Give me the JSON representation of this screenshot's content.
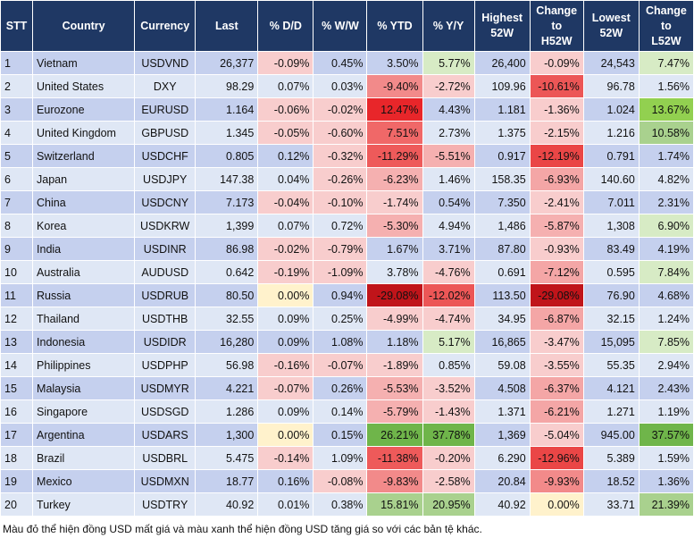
{
  "table": {
    "header": [
      "STT",
      "Country",
      "Currency",
      "Last",
      "% D/D",
      "% W/W",
      "% YTD",
      "% Y/Y",
      "Highest\n52W",
      "Change\nto\nH52W",
      "Lowest\n52W",
      "Change\nto\nL52W"
    ],
    "rows": [
      [
        "1",
        "Vietnam",
        "USDVND",
        "26,377",
        "-0.09%",
        "0.45%",
        "3.50%",
        "5.77%",
        "26,400",
        "-0.09%",
        "24,543",
        "7.47%"
      ],
      [
        "2",
        "United States",
        "DXY",
        "98.29",
        "0.07%",
        "0.03%",
        "-9.40%",
        "-2.72%",
        "109.96",
        "-10.61%",
        "96.78",
        "1.56%"
      ],
      [
        "3",
        "Eurozone",
        "EURUSD",
        "1.164",
        "-0.06%",
        "-0.02%",
        "12.47%",
        "4.43%",
        "1.181",
        "-1.36%",
        "1.024",
        "13.67%"
      ],
      [
        "4",
        "United Kingdom",
        "GBPUSD",
        "1.345",
        "-0.05%",
        "-0.60%",
        "7.51%",
        "2.73%",
        "1.375",
        "-2.15%",
        "1.216",
        "10.58%"
      ],
      [
        "5",
        "Switzerland",
        "USDCHF",
        "0.805",
        "0.12%",
        "-0.32%",
        "-11.29%",
        "-5.51%",
        "0.917",
        "-12.19%",
        "0.791",
        "1.74%"
      ],
      [
        "6",
        "Japan",
        "USDJPY",
        "147.38",
        "0.04%",
        "-0.26%",
        "-6.23%",
        "1.46%",
        "158.35",
        "-6.93%",
        "140.60",
        "4.82%"
      ],
      [
        "7",
        "China",
        "USDCNY",
        "7.173",
        "-0.04%",
        "-0.10%",
        "-1.74%",
        "0.54%",
        "7.350",
        "-2.41%",
        "7.011",
        "2.31%"
      ],
      [
        "8",
        "Korea",
        "USDKRW",
        "1,399",
        "0.07%",
        "0.72%",
        "-5.30%",
        "4.94%",
        "1,486",
        "-5.87%",
        "1,308",
        "6.90%"
      ],
      [
        "9",
        "India",
        "USDINR",
        "86.98",
        "-0.02%",
        "-0.79%",
        "1.67%",
        "3.71%",
        "87.80",
        "-0.93%",
        "83.49",
        "4.19%"
      ],
      [
        "10",
        "Australia",
        "AUDUSD",
        "0.642",
        "-0.19%",
        "-1.09%",
        "3.78%",
        "-4.76%",
        "0.691",
        "-7.12%",
        "0.595",
        "7.84%"
      ],
      [
        "11",
        "Russia",
        "USDRUB",
        "80.50",
        "0.00%",
        "0.94%",
        "-29.08%",
        "-12.02%",
        "113.50",
        "-29.08%",
        "76.90",
        "4.68%"
      ],
      [
        "12",
        "Thailand",
        "USDTHB",
        "32.55",
        "0.09%",
        "0.25%",
        "-4.99%",
        "-4.74%",
        "34.95",
        "-6.87%",
        "32.15",
        "1.24%"
      ],
      [
        "13",
        "Indonesia",
        "USDIDR",
        "16,280",
        "0.09%",
        "1.08%",
        "1.18%",
        "5.17%",
        "16,865",
        "-3.47%",
        "15,095",
        "7.85%"
      ],
      [
        "14",
        "Philippines",
        "USDPHP",
        "56.98",
        "-0.16%",
        "-0.07%",
        "-1.89%",
        "0.85%",
        "59.08",
        "-3.55%",
        "55.35",
        "2.94%"
      ],
      [
        "15",
        "Malaysia",
        "USDMYR",
        "4.221",
        "-0.07%",
        "0.26%",
        "-5.53%",
        "-3.52%",
        "4.508",
        "-6.37%",
        "4.121",
        "2.43%"
      ],
      [
        "16",
        "Singapore",
        "USDSGD",
        "1.286",
        "0.09%",
        "0.14%",
        "-5.79%",
        "-1.43%",
        "1.371",
        "-6.21%",
        "1.271",
        "1.19%"
      ],
      [
        "17",
        "Argentina",
        "USDARS",
        "1,300",
        "0.00%",
        "0.15%",
        "26.21%",
        "37.78%",
        "1,369",
        "-5.04%",
        "945.00",
        "37.57%"
      ],
      [
        "18",
        "Brazil",
        "USDBRL",
        "5.475",
        "-0.14%",
        "1.09%",
        "-11.38%",
        "-0.20%",
        "6.290",
        "-12.96%",
        "5.389",
        "1.59%"
      ],
      [
        "19",
        "Mexico",
        "USDMXN",
        "18.77",
        "0.16%",
        "-0.08%",
        "-9.83%",
        "-2.58%",
        "20.84",
        "-9.93%",
        "18.52",
        "1.36%"
      ],
      [
        "20",
        "Turkey",
        "USDTRY",
        "40.92",
        "0.01%",
        "0.38%",
        "15.81%",
        "20.95%",
        "40.92",
        "0.00%",
        "33.71",
        "21.39%"
      ]
    ],
    "cell_fills": [
      [
        null,
        null,
        null,
        null,
        "#f8cdcd",
        null,
        null,
        "#d7ebc5",
        null,
        "#f8cdcd",
        null,
        "#d7ebc5"
      ],
      [
        null,
        null,
        null,
        null,
        null,
        null,
        "#f28a8a",
        "#f8cdcd",
        null,
        "#ec5656",
        null,
        null
      ],
      [
        null,
        null,
        null,
        null,
        "#f8cdcd",
        "#f8cdcd",
        "#e8262a",
        null,
        null,
        "#f8cdcd",
        null,
        "#92d050"
      ],
      [
        null,
        null,
        null,
        null,
        "#f8cdcd",
        "#f8cdcd",
        "#f06868",
        null,
        null,
        "#f8cdcd",
        null,
        "#a9d18e"
      ],
      [
        null,
        null,
        null,
        null,
        null,
        "#f8cdcd",
        "#ee5a5a",
        "#f5b0b0",
        null,
        "#ea4646",
        null,
        null
      ],
      [
        null,
        null,
        null,
        null,
        null,
        "#f8cdcd",
        "#f5b0b0",
        null,
        null,
        "#f4a6a6",
        null,
        null
      ],
      [
        null,
        null,
        null,
        null,
        "#f8cdcd",
        "#f8cdcd",
        "#f8cdcd",
        null,
        null,
        "#f8cdcd",
        null,
        null
      ],
      [
        null,
        null,
        null,
        null,
        null,
        null,
        "#f5b0b0",
        null,
        null,
        "#f5b0b0",
        null,
        "#d7ebc5"
      ],
      [
        null,
        null,
        null,
        null,
        "#f8cdcd",
        "#f8cdcd",
        null,
        null,
        null,
        "#f8cdcd",
        null,
        null
      ],
      [
        null,
        null,
        null,
        null,
        "#f8cdcd",
        "#f8cdcd",
        null,
        "#f8cdcd",
        null,
        "#f4a6a6",
        null,
        "#d7ebc5"
      ],
      [
        null,
        null,
        null,
        null,
        "#fff2cc",
        null,
        "#c0141a",
        "#ec5656",
        null,
        "#c0141a",
        null,
        null
      ],
      [
        null,
        null,
        null,
        null,
        null,
        null,
        "#f8cdcd",
        "#f8cdcd",
        null,
        "#f4a6a6",
        null,
        null
      ],
      [
        null,
        null,
        null,
        null,
        null,
        null,
        null,
        "#d7ebc5",
        null,
        "#f8cdcd",
        null,
        "#d7ebc5"
      ],
      [
        null,
        null,
        null,
        null,
        "#f8cdcd",
        "#f8cdcd",
        "#f8cdcd",
        null,
        null,
        "#f8cdcd",
        null,
        null
      ],
      [
        null,
        null,
        null,
        null,
        "#f8cdcd",
        null,
        "#f5b0b0",
        "#f8cdcd",
        null,
        "#f4a6a6",
        null,
        null
      ],
      [
        null,
        null,
        null,
        null,
        null,
        null,
        "#f5b0b0",
        "#f8cdcd",
        null,
        "#f4a6a6",
        null,
        null
      ],
      [
        null,
        null,
        null,
        null,
        "#fff2cc",
        null,
        "#6fb54a",
        "#6fb54a",
        null,
        "#f8cdcd",
        null,
        "#6fb54a"
      ],
      [
        null,
        null,
        null,
        null,
        "#f8cdcd",
        null,
        "#ee5a5a",
        "#f8cdcd",
        null,
        "#ea4646",
        null,
        null
      ],
      [
        null,
        null,
        null,
        null,
        null,
        "#f8cdcd",
        "#f28a8a",
        "#f8cdcd",
        null,
        "#f28a8a",
        null,
        null
      ],
      [
        null,
        null,
        null,
        null,
        null,
        null,
        "#a9d18e",
        "#a9d18e",
        null,
        "#fff2cc",
        null,
        "#a9d18e"
      ]
    ],
    "footnote": "Màu đỏ thể hiện đồng USD mất giá và màu xanh thể hiện đồng USD tăng giá so với các bản tệ khác."
  }
}
